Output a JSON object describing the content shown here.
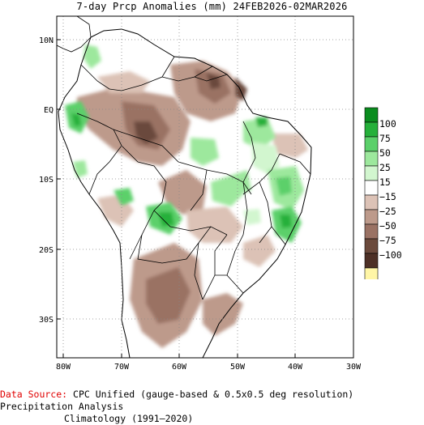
{
  "title": "7-day Prcp Anomalies (mm) 24FEB2026-02MAR2026",
  "map": {
    "lon_labels": [
      "80W",
      "70W",
      "60W",
      "50W",
      "40W",
      "30W"
    ],
    "lat_labels": [
      "10N",
      "EQ",
      "10S",
      "20S",
      "30S"
    ]
  },
  "legend": {
    "labels": [
      "100",
      "75",
      "50",
      "25",
      "15",
      "−15",
      "−25",
      "−50",
      "−75",
      "−100"
    ],
    "colors": [
      "#0a8c1e",
      "#25b03a",
      "#5bd06a",
      "#9de89d",
      "#d2f6cf",
      "#ffffff",
      "#dcc2b6",
      "#bd9a8b",
      "#9a7264",
      "#6b4a3c",
      "#4d3026",
      "#fff6a6"
    ]
  },
  "footer": {
    "source_label": "Data Source:",
    "source_text": "CPC Unified (gauge-based & 0.5x0.5 deg resolution) Precipitation Analysis",
    "climatology": "Climatology (1991–2020)"
  }
}
